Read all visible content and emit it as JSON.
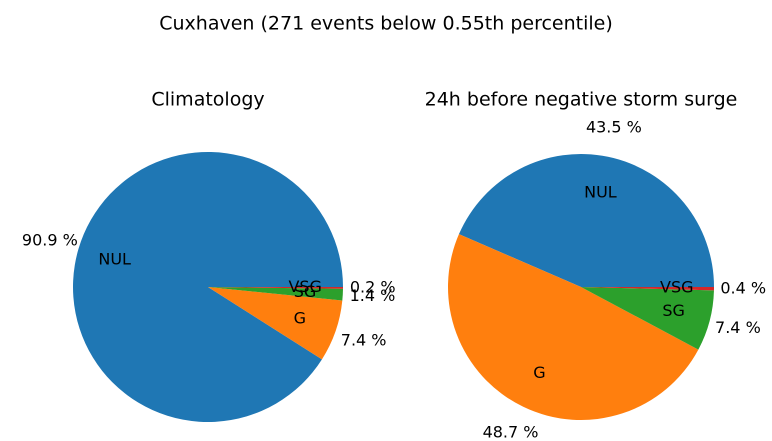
{
  "title": "Cuxhaven (271 events below 0.55th percentile)",
  "chart_data": [
    {
      "type": "pie",
      "title": "Climatology",
      "categories": [
        "NUL",
        "G",
        "SG",
        "VSG"
      ],
      "values": [
        90.9,
        7.4,
        1.4,
        0.2
      ],
      "value_labels": [
        "90.9 %",
        "7.4 %",
        "1.4 %",
        "0.2 %"
      ],
      "colors": [
        "#1f77b4",
        "#ff7f0e",
        "#2ca02c",
        "#d62728"
      ]
    },
    {
      "type": "pie",
      "title": "24h before negative storm surge",
      "categories": [
        "NUL",
        "G",
        "SG",
        "VSG"
      ],
      "values": [
        43.5,
        48.7,
        7.4,
        0.4
      ],
      "value_labels": [
        "43.5 %",
        "48.7 %",
        "7.4 %",
        "0.4 %"
      ],
      "colors": [
        "#1f77b4",
        "#ff7f0e",
        "#2ca02c",
        "#d62728"
      ]
    }
  ]
}
